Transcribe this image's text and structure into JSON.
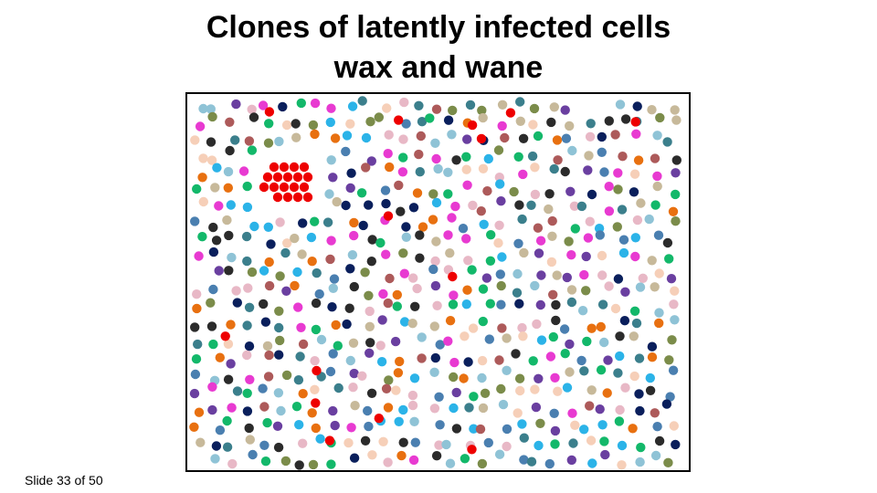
{
  "slide": {
    "title_line1": "Clones of latently infected cells",
    "title_line2": "wax and wane",
    "slide_number": "Slide 33 of 50"
  },
  "illustration": {
    "description_colors": {
      "clone": "#ee0000",
      "others": [
        "#2bb3e8",
        "#ad5a5a",
        "#7b8c4a",
        "#13b86a",
        "#6a3fa0",
        "#e83ad1",
        "#0a1f5c",
        "#4a7fb0",
        "#2b2b2b",
        "#c7b99a",
        "#f6cfb8",
        "#e8b8c6",
        "#8fc3d6",
        "#3b7f8c",
        "#e87010"
      ]
    }
  }
}
